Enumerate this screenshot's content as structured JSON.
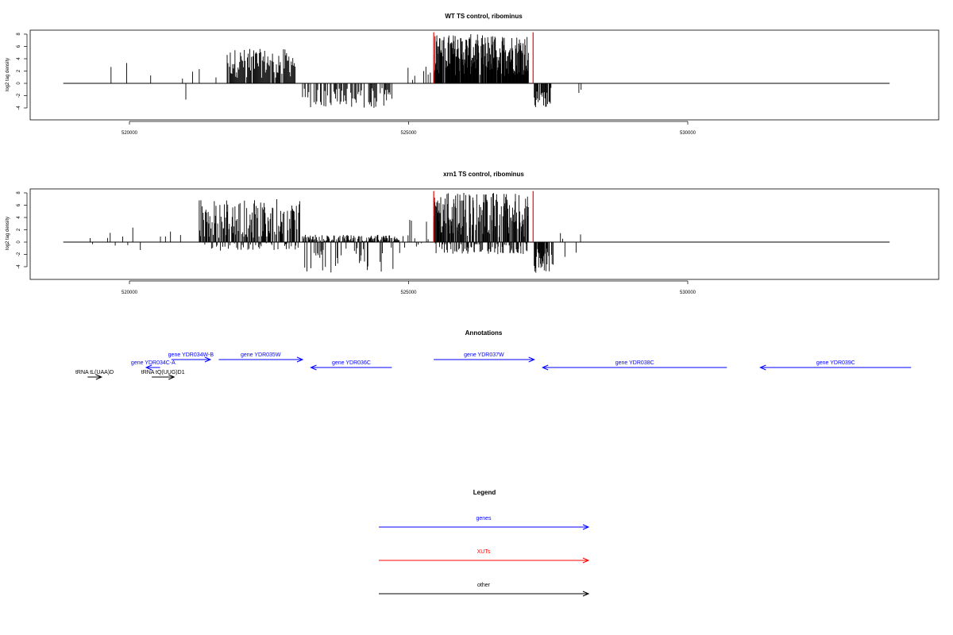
{
  "colors": {
    "genes": "#0000ff",
    "xuts": "#ff0000",
    "other": "#000000",
    "axis": "#000000"
  },
  "chart_data": [
    {
      "type": "bar",
      "title": "WT TS control, ribominus",
      "ylabel": "log2 tag density",
      "xlim": [
        518800,
        534000
      ],
      "ylim": [
        -5.5,
        8.5
      ],
      "xticks": [
        520000,
        525000,
        530000
      ],
      "yticks": [
        -4,
        -2,
        0,
        2,
        4,
        6,
        8
      ],
      "xut_marks": [
        525450,
        527230
      ],
      "regions": [
        {
          "from": 519600,
          "to": 520050,
          "max": 3.6,
          "min": 0,
          "step": 70,
          "density": 0.35
        },
        {
          "from": 520200,
          "to": 520450,
          "max": 1.5,
          "min": 0,
          "step": 90,
          "density": 0.4
        },
        {
          "from": 520950,
          "to": 521750,
          "max": 2.5,
          "min": -3.0,
          "step": 60,
          "density": 0.3
        },
        {
          "from": 521750,
          "to": 523000,
          "max": 5.6,
          "min": 0,
          "step": 14,
          "density": 0.85
        },
        {
          "from": 523100,
          "to": 524700,
          "max": 0,
          "min": -4.0,
          "step": 16,
          "density": 0.7
        },
        {
          "from": 524950,
          "to": 525400,
          "max": 3.2,
          "min": 0,
          "step": 40,
          "density": 0.45
        },
        {
          "from": 525450,
          "to": 527150,
          "max": 8.0,
          "min": 0,
          "step": 8,
          "density": 0.95
        },
        {
          "from": 527250,
          "to": 527550,
          "max": 0,
          "min": -4.0,
          "step": 12,
          "density": 0.85
        },
        {
          "from": 528050,
          "to": 528100,
          "max": 0,
          "min": -1.8,
          "step": 40,
          "density": 1.0
        }
      ]
    },
    {
      "type": "bar",
      "title": "xrn1 TS control, ribominus",
      "ylabel": "log2 tag density",
      "xlim": [
        518800,
        534000
      ],
      "ylim": [
        -5.5,
        8.5
      ],
      "xticks": [
        520000,
        525000,
        530000
      ],
      "yticks": [
        -4,
        -2,
        0,
        2,
        4,
        6,
        8
      ],
      "xut_marks": [
        525450,
        527230
      ],
      "regions": [
        {
          "from": 519250,
          "to": 520950,
          "max": 2.6,
          "min": -1.6,
          "step": 45,
          "density": 0.35
        },
        {
          "from": 521250,
          "to": 523050,
          "max": 7.0,
          "min": -1.5,
          "step": 10,
          "density": 0.9
        },
        {
          "from": 523100,
          "to": 524850,
          "max": 1.2,
          "min": -5.2,
          "step": 10,
          "density": 0.9
        },
        {
          "from": 524900,
          "to": 525400,
          "max": 3.8,
          "min": -1.0,
          "step": 30,
          "density": 0.5
        },
        {
          "from": 525450,
          "to": 527150,
          "max": 8.0,
          "min": -2.0,
          "step": 7,
          "density": 0.95
        },
        {
          "from": 527250,
          "to": 527600,
          "max": 0,
          "min": -5.0,
          "step": 10,
          "density": 0.85
        },
        {
          "from": 527600,
          "to": 528100,
          "max": 2.5,
          "min": -3.0,
          "step": 40,
          "density": 0.5
        }
      ]
    }
  ],
  "annotations": {
    "title": "Annotations",
    "features": [
      {
        "label": "tRNA tL(UAA)D",
        "kind": "other",
        "start": 519250,
        "end": 519500,
        "strand": "+",
        "row": 0
      },
      {
        "label": "tRNA tQ(UUG)D1",
        "kind": "other",
        "start": 520400,
        "end": 520800,
        "strand": "+",
        "row": 0
      },
      {
        "label": "gene YDR034C-A",
        "kind": "genes",
        "start": 520300,
        "end": 520550,
        "strand": "-",
        "row": 1
      },
      {
        "label": "gene YDR034W-B",
        "kind": "genes",
        "start": 520750,
        "end": 521450,
        "strand": "+",
        "row": 2
      },
      {
        "label": "gene YDR035W",
        "kind": "genes",
        "start": 521600,
        "end": 523100,
        "strand": "+",
        "row": 2
      },
      {
        "label": "gene YDR036C",
        "kind": "genes",
        "start": 523250,
        "end": 524700,
        "strand": "-",
        "row": 1
      },
      {
        "label": "gene YDR037W",
        "kind": "genes",
        "start": 525450,
        "end": 527250,
        "strand": "+",
        "row": 2
      },
      {
        "label": "gene YDR038C",
        "kind": "genes",
        "start": 527400,
        "end": 530700,
        "strand": "-",
        "row": 1
      },
      {
        "label": "gene YDR039C",
        "kind": "genes",
        "start": 531300,
        "end": 534000,
        "strand": "-",
        "row": 1
      }
    ]
  },
  "legend": {
    "title": "Legend",
    "items": [
      {
        "label": "genes",
        "kind": "genes"
      },
      {
        "label": "XUTs",
        "kind": "xuts"
      },
      {
        "label": "other",
        "kind": "other"
      }
    ]
  }
}
